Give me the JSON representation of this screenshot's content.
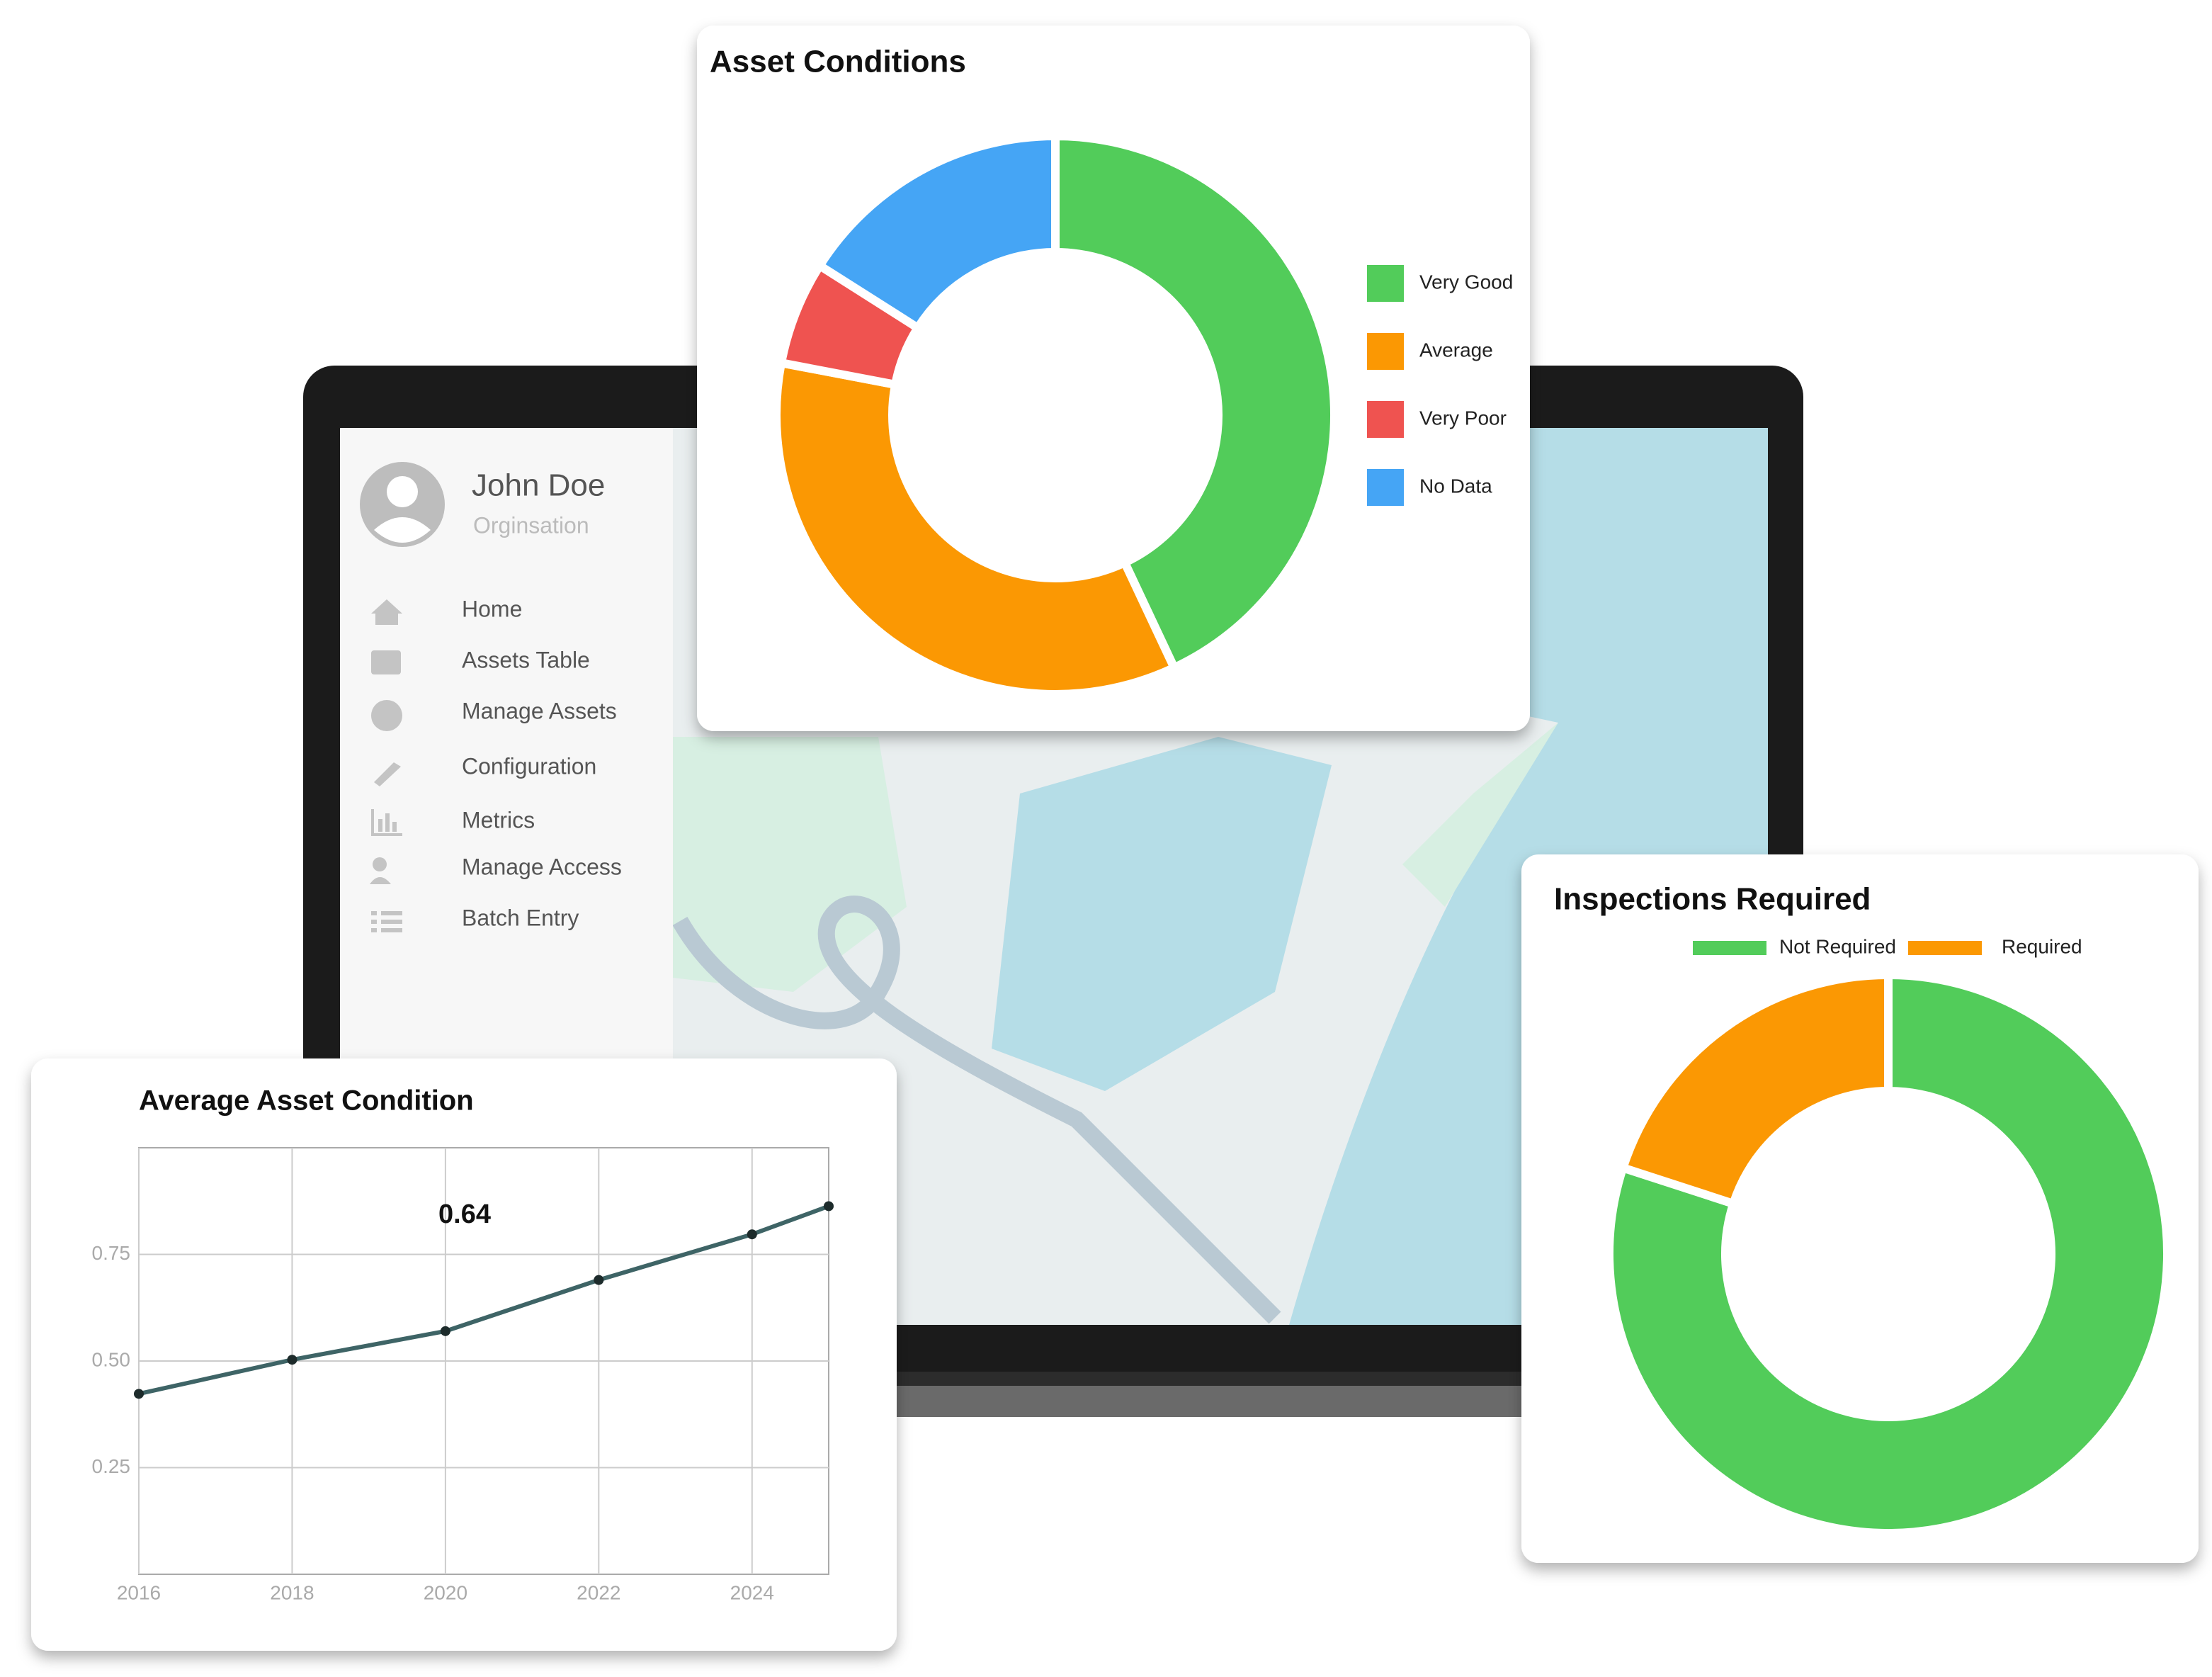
{
  "sidebar": {
    "user_name": "John Doe",
    "organisation": "Orginsation",
    "menu": [
      "Home",
      "Assets Table",
      "Manage Assets",
      "Configuration",
      "Metrics",
      "Manage Access",
      "Batch Entry"
    ]
  },
  "chart_data": [
    {
      "type": "donut",
      "title": "Asset Conditions",
      "legend": "right",
      "categories": [
        "Very Good",
        "Average",
        "Very Poor",
        "No Data"
      ],
      "values": [
        43,
        35,
        6,
        16
      ],
      "colors": [
        "#52cc5a",
        "#fb9803",
        "#ef5350",
        "#45a5f5"
      ]
    },
    {
      "type": "donut",
      "title": "Inspections Required",
      "legend": "top",
      "categories": [
        "Not Required",
        "Required"
      ],
      "values": [
        80,
        20
      ],
      "colors": [
        "#52cc5a",
        "#fb9803"
      ]
    },
    {
      "type": "line",
      "title": "Average Asset Condition",
      "annotation": "0.64",
      "x": [
        2016,
        2018,
        2020,
        2022,
        2024,
        2025
      ],
      "values": [
        0.423,
        0.503,
        0.57,
        0.69,
        0.797,
        0.863
      ],
      "color": "#3e6466",
      "xlim": [
        2016,
        2025
      ],
      "xticks": [
        2016,
        2018,
        2020,
        2022,
        2024
      ],
      "ylim": [
        0,
        1
      ],
      "yticks": [
        0.25,
        {
          "value": 0.5,
          "label": "0.50"
        },
        0.75
      ],
      "grid": true
    }
  ]
}
